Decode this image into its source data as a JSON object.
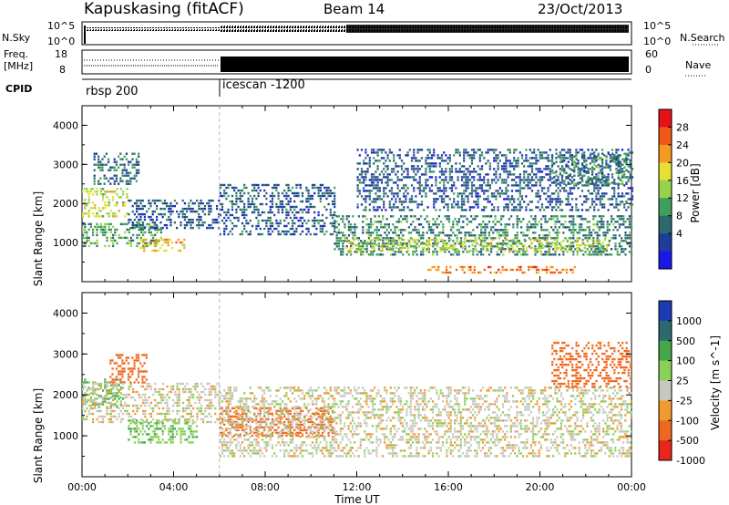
{
  "header": {
    "station": "Kapuskasing (fitACF)",
    "beam": "Beam 14",
    "date": "23/Oct/2013"
  },
  "nsky_panel": {
    "left_label": "N.Sky",
    "right_label": "N.Search",
    "left_ticks": [
      "10^5",
      "10^0"
    ],
    "right_ticks": [
      "10^5",
      "10^0"
    ]
  },
  "freq_panel": {
    "left_label_1": "Freq.",
    "left_label_2": "[MHz]",
    "right_label": "Nave",
    "left_ticks": [
      "18",
      "8"
    ],
    "right_ticks": [
      "60",
      "0"
    ]
  },
  "cpid_panel": {
    "label": "CPID",
    "modes": [
      {
        "name": "rbsp 200",
        "start_hour": 0
      },
      {
        "name": "icescan -1200",
        "start_hour": 6
      }
    ]
  },
  "power_colorbar": {
    "title": "Power [dB]",
    "ticks": [
      "28",
      "24",
      "20",
      "16",
      "12",
      "8",
      "4"
    ],
    "colors": [
      "#e8101a",
      "#f05818",
      "#f49a22",
      "#e6e032",
      "#96d24c",
      "#3ea05c",
      "#2c6a6e",
      "#1e3c9c",
      "#1a18e6"
    ]
  },
  "velocity_colorbar": {
    "title": "Velocity [m s^-1]",
    "ticks": [
      "1000",
      "500",
      "100",
      "25",
      "-25",
      "-100",
      "-500",
      "-1000"
    ],
    "colors": [
      "#1b3bb4",
      "#2c6a6e",
      "#46a64a",
      "#8ad05a",
      "#c8c8c0",
      "#f09a30",
      "#f06820",
      "#e8261a"
    ]
  },
  "chart_data": [
    {
      "type": "heatmap",
      "title": "",
      "xlabel": "Time UT",
      "ylabel": "Slant Range [km]",
      "xlim": [
        0,
        24
      ],
      "ylim": [
        0,
        4500
      ],
      "x_ticks": [
        "00:00",
        "04:00",
        "08:00",
        "12:00",
        "16:00",
        "20:00",
        "00:00"
      ],
      "y_ticks": [
        "1000",
        "2000",
        "3000",
        "4000"
      ],
      "colorbar": "Power [dB]",
      "echo_regions": [
        {
          "t0": 0.0,
          "t1": 2.0,
          "r0": 1700,
          "r1": 2400,
          "power_db": 18
        },
        {
          "t0": 0.0,
          "t1": 3.5,
          "r0": 900,
          "r1": 1500,
          "power_db": 12
        },
        {
          "t0": 0.5,
          "t1": 2.5,
          "r0": 2500,
          "r1": 3300,
          "power_db": 8
        },
        {
          "t0": 2.5,
          "t1": 4.5,
          "r0": 800,
          "r1": 1100,
          "power_db": 22
        },
        {
          "t0": 2.0,
          "t1": 6.0,
          "r0": 1400,
          "r1": 2100,
          "power_db": 6
        },
        {
          "t0": 6.0,
          "t1": 11.0,
          "r0": 1200,
          "r1": 2500,
          "power_db": 6
        },
        {
          "t0": 11.0,
          "t1": 24.0,
          "r0": 700,
          "r1": 1700,
          "power_db": 10
        },
        {
          "t0": 11.5,
          "t1": 23.0,
          "r0": 800,
          "r1": 1100,
          "power_db": 18
        },
        {
          "t0": 15.0,
          "t1": 21.5,
          "r0": 250,
          "r1": 400,
          "power_db": 26
        },
        {
          "t0": 12.0,
          "t1": 24.0,
          "r0": 1800,
          "r1": 3400,
          "power_db": 6
        },
        {
          "t0": 20.5,
          "t1": 24.0,
          "r0": 2500,
          "r1": 3300,
          "power_db": 10
        }
      ]
    },
    {
      "type": "heatmap",
      "title": "",
      "xlabel": "Time UT",
      "ylabel": "Slant Range [km]",
      "xlim": [
        0,
        24
      ],
      "ylim": [
        0,
        4500
      ],
      "x_ticks": [
        "00:00",
        "04:00",
        "08:00",
        "12:00",
        "16:00",
        "20:00",
        "00:00"
      ],
      "y_ticks": [
        "1000",
        "2000",
        "3000",
        "4000"
      ],
      "colorbar": "Velocity [m s^-1]",
      "echo_regions": [
        {
          "t0": 0.0,
          "t1": 1.8,
          "r0": 1700,
          "r1": 2400,
          "velocity": 100
        },
        {
          "t0": 1.2,
          "t1": 2.8,
          "r0": 2300,
          "r1": 3000,
          "velocity": -300
        },
        {
          "t0": 0.0,
          "t1": 6.0,
          "r0": 1300,
          "r1": 2300,
          "velocity": 0
        },
        {
          "t0": 2.0,
          "t1": 5.0,
          "r0": 800,
          "r1": 1400,
          "velocity": 80
        },
        {
          "t0": 6.0,
          "t1": 11.0,
          "r0": 1000,
          "r1": 1700,
          "velocity": -150
        },
        {
          "t0": 6.0,
          "t1": 24.0,
          "r0": 500,
          "r1": 2200,
          "velocity": 0
        },
        {
          "t0": 20.5,
          "t1": 24.0,
          "r0": 2200,
          "r1": 3300,
          "velocity": -200
        }
      ]
    }
  ]
}
